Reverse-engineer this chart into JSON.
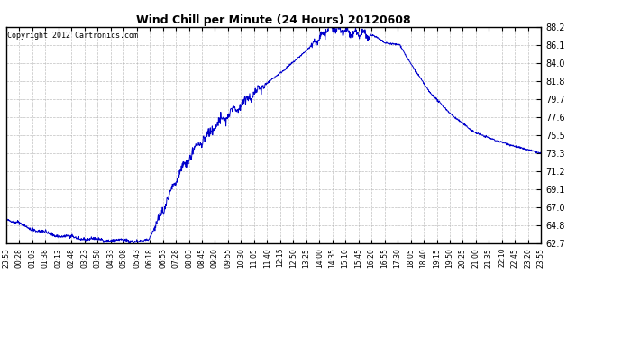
{
  "title": "Wind Chill per Minute (24 Hours) 20120608",
  "copyright_text": "Copyright 2012 Cartronics.com",
  "line_color": "#0000CC",
  "background_color": "#ffffff",
  "plot_bg_color": "#ffffff",
  "grid_color": "#b0b0b0",
  "ylim": [
    62.7,
    88.2
  ],
  "yticks": [
    62.7,
    64.8,
    67.0,
    69.1,
    71.2,
    73.3,
    75.5,
    77.6,
    79.7,
    81.8,
    84.0,
    86.1,
    88.2
  ],
  "xtick_labels": [
    "23:53",
    "00:28",
    "01:03",
    "01:38",
    "02:13",
    "02:48",
    "03:23",
    "03:58",
    "04:33",
    "05:08",
    "05:43",
    "06:18",
    "06:53",
    "07:28",
    "08:03",
    "08:45",
    "09:20",
    "09:55",
    "10:30",
    "11:05",
    "11:40",
    "12:15",
    "12:50",
    "13:25",
    "14:00",
    "14:35",
    "15:10",
    "15:45",
    "16:20",
    "16:55",
    "17:30",
    "18:05",
    "18:40",
    "19:15",
    "19:50",
    "20:25",
    "21:00",
    "21:35",
    "22:10",
    "22:45",
    "23:20",
    "23:55"
  ],
  "num_points": 1440
}
